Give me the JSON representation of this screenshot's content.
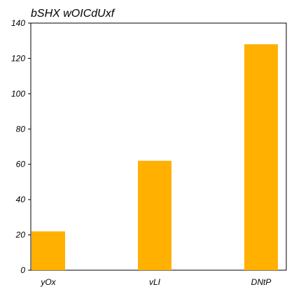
{
  "chart_data": {
    "type": "bar",
    "title": "bSHX wOICdUxf",
    "categories": [
      "yOx",
      "vLI",
      "DNtP"
    ],
    "values": [
      22,
      62,
      128
    ],
    "ylim": [
      0,
      140
    ],
    "yticks": [
      0,
      20,
      40,
      60,
      80,
      100,
      120,
      140
    ],
    "xlabel": "",
    "ylabel": "",
    "grid": false,
    "bar_color": "#ffb000"
  }
}
